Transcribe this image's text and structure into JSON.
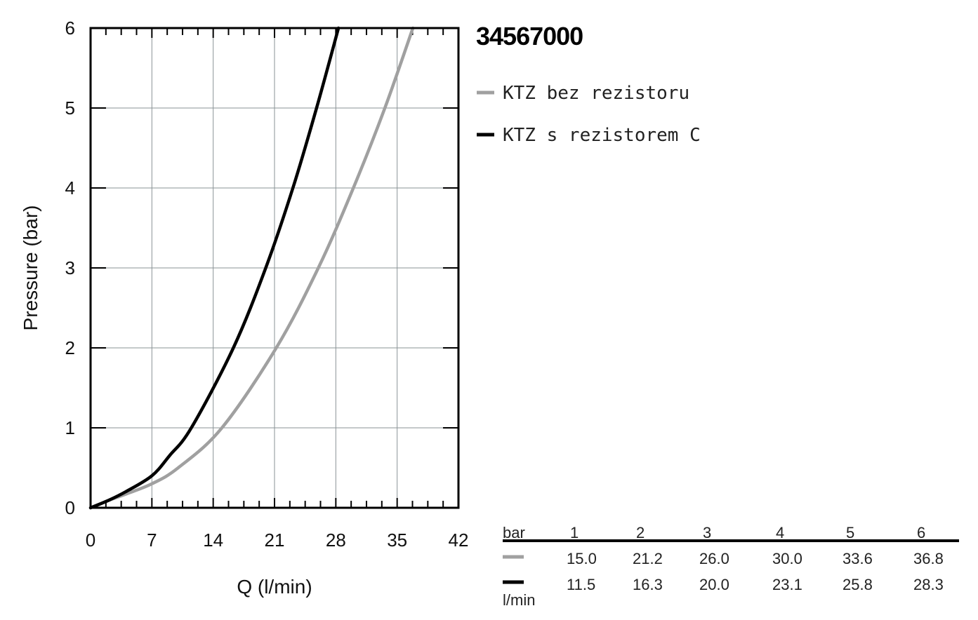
{
  "chart_data": {
    "type": "line",
    "title": "34567000",
    "xlabel": "Q (l/min)",
    "ylabel": "Pressure (bar)",
    "xlim": [
      0,
      42
    ],
    "ylim": [
      0,
      6
    ],
    "xticks": [
      0,
      7,
      14,
      21,
      28,
      35,
      42
    ],
    "yticks": [
      0,
      1,
      2,
      3,
      4,
      5,
      6
    ],
    "grid": true,
    "legend_position": "top-right",
    "series": [
      {
        "name": "KTZ bez rezistoru",
        "color": "#a0a0a0",
        "points": [
          [
            0,
            0
          ],
          [
            2,
            0.09
          ],
          [
            4,
            0.17
          ],
          [
            7,
            0.3
          ],
          [
            10,
            0.5
          ],
          [
            15,
            1.0
          ],
          [
            21.2,
            2.0
          ],
          [
            26,
            3.0
          ],
          [
            30,
            4.0
          ],
          [
            33.6,
            5.0
          ],
          [
            36.8,
            6.0
          ]
        ]
      },
      {
        "name": "KTZ s rezistorem C",
        "color": "#000000",
        "points": [
          [
            0,
            0
          ],
          [
            2,
            0.09
          ],
          [
            4,
            0.2
          ],
          [
            7,
            0.4
          ],
          [
            9,
            0.65
          ],
          [
            11.5,
            1.0
          ],
          [
            16.3,
            2.0
          ],
          [
            20,
            3.0
          ],
          [
            23.1,
            4.0
          ],
          [
            25.8,
            5.0
          ],
          [
            28.3,
            6.0
          ]
        ]
      }
    ]
  },
  "table": {
    "header_label": "bar",
    "unit_label": "l/min",
    "columns": [
      "1",
      "2",
      "3",
      "4",
      "5",
      "6"
    ],
    "rows": [
      {
        "color": "#a0a0a0",
        "values": [
          "15.0",
          "21.2",
          "26.0",
          "30.0",
          "33.6",
          "36.8"
        ]
      },
      {
        "color": "#000000",
        "values": [
          "11.5",
          "16.3",
          "20.0",
          "23.1",
          "25.8",
          "28.3"
        ]
      }
    ]
  }
}
